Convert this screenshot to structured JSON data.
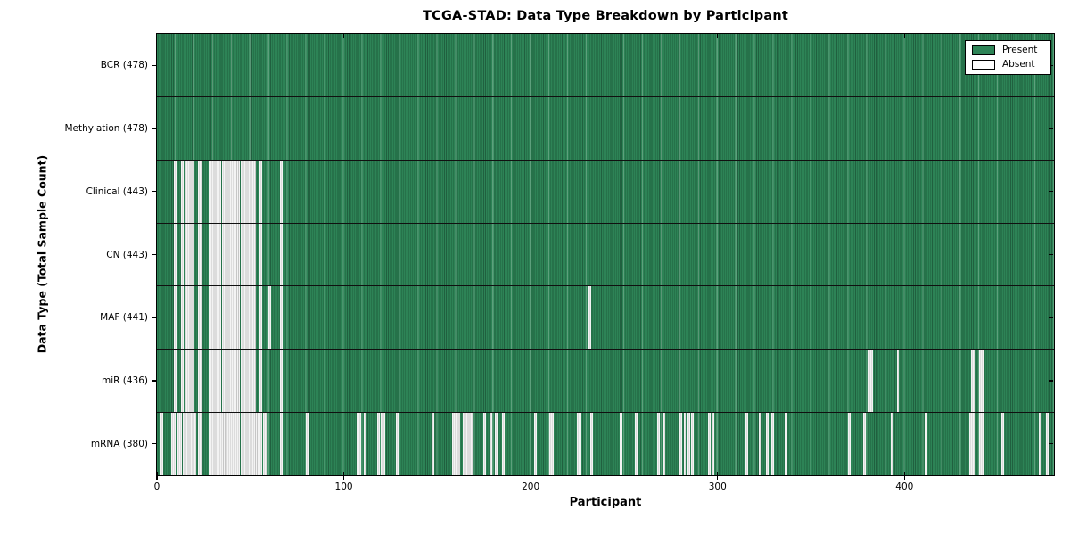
{
  "chart_data": {
    "type": "heatmap",
    "title": "TCGA-STAD: Data Type Breakdown by Participant",
    "xlabel": "Participant",
    "ylabel": "Data Type (Total Sample Count)",
    "x_ticks": [
      0,
      100,
      200,
      300,
      400
    ],
    "n_participants": 478,
    "grid": false,
    "legend": {
      "position": "upper right",
      "entries": [
        {
          "label": "Present",
          "color": "#2d8356"
        },
        {
          "label": "Absent",
          "color": "#ffffff"
        }
      ]
    },
    "colors": {
      "present_fill": "#2d8356",
      "present_edge": "#20603f",
      "absent_fill": "#f3f3f3",
      "absent_edge": "#c6c6c6",
      "axis": "#000000",
      "background": "#ffffff"
    },
    "rows": [
      {
        "name": "BCR",
        "label": "BCR (478)",
        "count": 478,
        "absent": []
      },
      {
        "name": "Methylation",
        "label": "Methylation (478)",
        "count": 478,
        "absent": []
      },
      {
        "name": "Clinical",
        "label": "Clinical (443)",
        "count": 443,
        "absent": [
          9,
          10,
          13,
          15,
          16,
          17,
          18,
          19,
          22,
          23,
          28,
          29,
          30,
          31,
          32,
          33,
          35,
          36,
          37,
          38,
          39,
          40,
          41,
          42,
          43,
          45,
          46,
          47,
          48,
          49,
          50,
          51,
          52,
          55,
          66
        ]
      },
      {
        "name": "CN",
        "label": "CN (443)",
        "count": 443,
        "absent": [
          9,
          10,
          13,
          15,
          16,
          17,
          18,
          19,
          22,
          23,
          28,
          29,
          30,
          31,
          32,
          33,
          35,
          36,
          37,
          38,
          39,
          40,
          41,
          42,
          43,
          45,
          46,
          47,
          48,
          49,
          50,
          51,
          52,
          55,
          66
        ]
      },
      {
        "name": "MAF",
        "label": "MAF (441)",
        "count": 441,
        "absent": [
          9,
          10,
          13,
          15,
          16,
          17,
          18,
          19,
          22,
          23,
          28,
          29,
          30,
          31,
          32,
          33,
          35,
          36,
          37,
          38,
          39,
          40,
          41,
          42,
          43,
          45,
          46,
          47,
          48,
          49,
          50,
          51,
          52,
          55,
          60,
          66,
          231
        ]
      },
      {
        "name": "miR",
        "label": "miR (436)",
        "count": 436,
        "absent": [
          9,
          10,
          13,
          15,
          16,
          17,
          18,
          19,
          22,
          23,
          28,
          29,
          30,
          31,
          32,
          33,
          35,
          36,
          37,
          38,
          39,
          40,
          41,
          42,
          43,
          45,
          46,
          47,
          48,
          49,
          50,
          51,
          52,
          55,
          66,
          381,
          382,
          396,
          436,
          437,
          440,
          441
        ]
      },
      {
        "name": "mRNA",
        "label": "mRNA (380)",
        "count": 380,
        "absent": [
          2,
          8,
          9,
          11,
          12,
          14,
          15,
          16,
          17,
          18,
          19,
          20,
          22,
          23,
          28,
          29,
          30,
          31,
          32,
          33,
          34,
          35,
          36,
          37,
          38,
          39,
          40,
          41,
          42,
          43,
          45,
          46,
          47,
          48,
          49,
          50,
          51,
          52,
          53,
          55,
          57,
          58,
          66,
          80,
          107,
          108,
          111,
          118,
          120,
          121,
          128,
          147,
          158,
          159,
          160,
          161,
          164,
          165,
          166,
          167,
          168,
          175,
          178,
          181,
          185,
          202,
          210,
          211,
          225,
          226,
          232,
          248,
          256,
          268,
          271,
          280,
          282,
          284,
          286,
          295,
          297,
          315,
          322,
          326,
          329,
          336,
          370,
          378,
          393,
          411,
          435,
          436,
          437,
          440,
          441,
          452,
          472,
          476
        ]
      }
    ]
  }
}
